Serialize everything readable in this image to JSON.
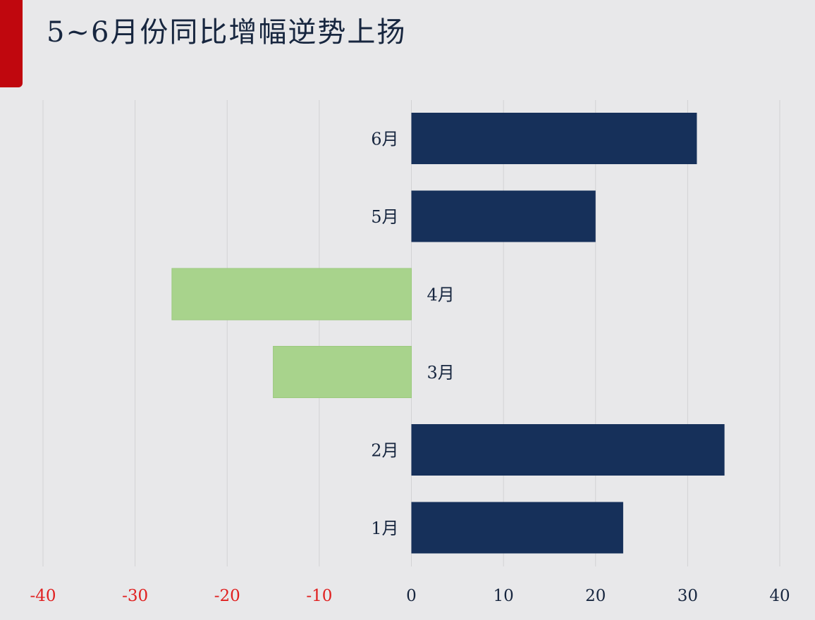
{
  "title": "5~6月份同比增幅逆势上扬",
  "colors": {
    "accent": "#c0070e",
    "positive_bar": "#16305a",
    "negative_bar": "#a8d38c",
    "negative_tick": "#e02020",
    "positive_tick": "#17263f",
    "gridline": "#d2d2d4"
  },
  "chart_data": {
    "type": "bar",
    "orientation": "horizontal",
    "categories": [
      "6月",
      "5月",
      "4月",
      "3月",
      "2月",
      "1月"
    ],
    "values": [
      31,
      20,
      -26,
      -15,
      34,
      23
    ],
    "xlim": [
      -40,
      40
    ],
    "xticks": [
      -40,
      -30,
      -20,
      -10,
      0,
      10,
      20,
      30,
      40
    ],
    "xtick_labels": [
      "-40",
      "-30",
      "-20",
      "-10",
      "0",
      "10",
      "20",
      "30",
      "40"
    ],
    "grid": true,
    "legend": false
  }
}
